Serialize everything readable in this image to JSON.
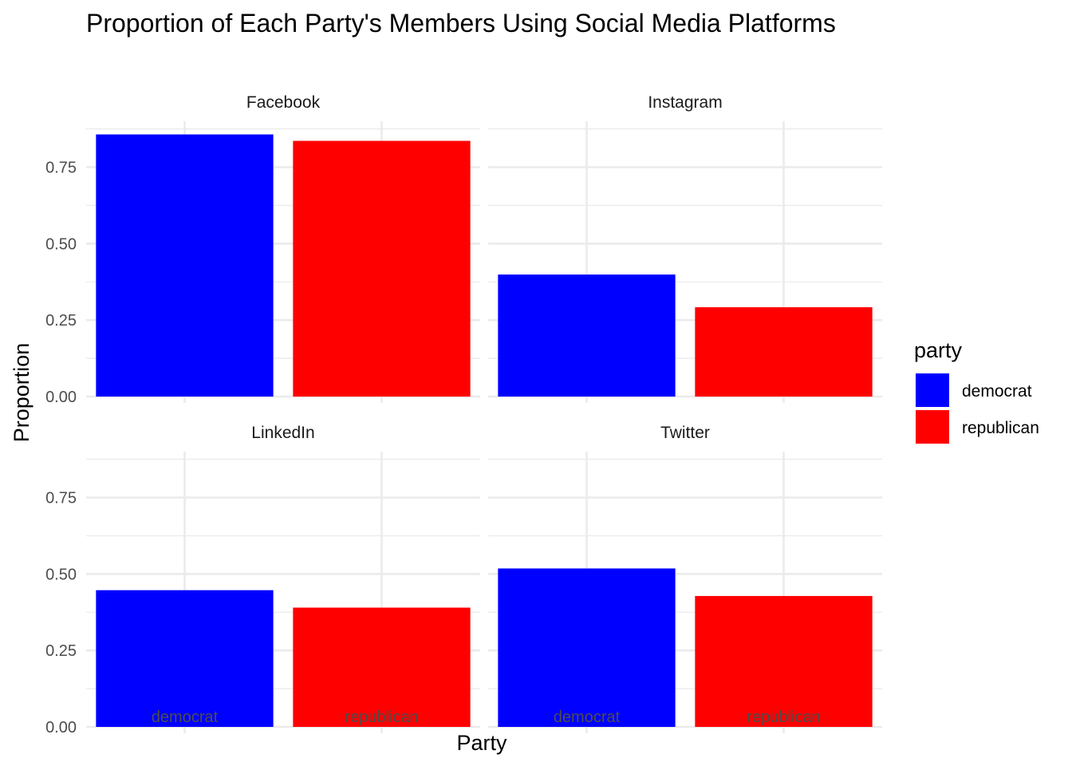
{
  "chart_data": {
    "type": "bar",
    "title": "Proportion of Each Party's Members Using Social Media Platforms",
    "xlabel": "Party",
    "ylabel": "Proportion",
    "categories": [
      "democrat",
      "republican"
    ],
    "ylim": [
      0,
      0.9
    ],
    "y_ticks": [
      "0.00",
      "0.25",
      "0.50",
      "0.75"
    ],
    "y_tick_values": [
      0,
      0.25,
      0.5,
      0.75
    ],
    "grid": true,
    "facets": [
      {
        "name": "Facebook",
        "values": [
          0.857,
          0.836
        ]
      },
      {
        "name": "Instagram",
        "values": [
          0.399,
          0.292
        ]
      },
      {
        "name": "LinkedIn",
        "values": [
          0.447,
          0.39
        ]
      },
      {
        "name": "Twitter",
        "values": [
          0.518,
          0.428
        ]
      }
    ],
    "legend": {
      "title": "party",
      "position": "right",
      "entries": [
        {
          "label": "democrat",
          "color": "#0000ff"
        },
        {
          "label": "republican",
          "color": "#ff0000"
        }
      ]
    },
    "colors": {
      "democrat": "#0000ff",
      "republican": "#ff0000"
    }
  }
}
